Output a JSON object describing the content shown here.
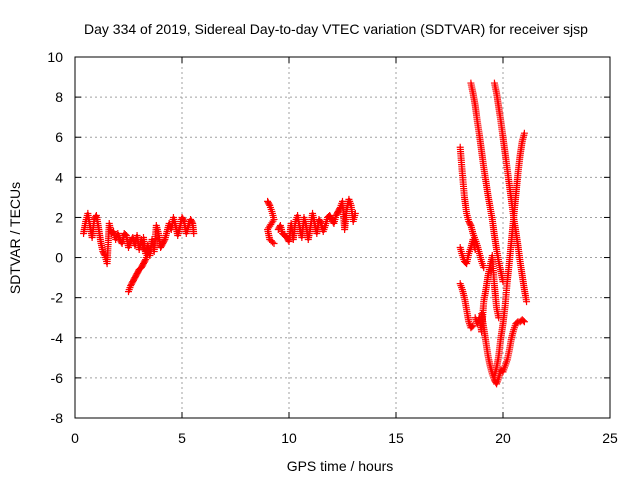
{
  "chart_data": {
    "type": "scatter",
    "title": "Day 334 of 2019, Sidereal Day-to-day VTEC variation (SDTVAR) for receiver sjsp",
    "xlabel": "GPS time / hours",
    "ylabel": "SDTVAR / TECUs",
    "xlim": [
      0,
      25
    ],
    "ylim": [
      -8,
      10
    ],
    "xticks": [
      "0",
      "5",
      "10",
      "15",
      "20",
      "25"
    ],
    "yticks": [
      "-8",
      "-6",
      "-4",
      "-2",
      "0",
      "2",
      "4",
      "6",
      "8",
      "10"
    ],
    "grid": true,
    "marker": "+",
    "series_color": "#ff0000",
    "segments": [
      {
        "name": "s1",
        "points": [
          [
            0.4,
            1.2
          ],
          [
            0.5,
            1.8
          ],
          [
            0.6,
            2.2
          ],
          [
            0.7,
            1.6
          ],
          [
            0.8,
            1.0
          ],
          [
            0.9,
            1.9
          ],
          [
            1.0,
            2.1
          ],
          [
            1.1,
            1.5
          ],
          [
            1.2,
            0.8
          ],
          [
            1.3,
            0.3
          ],
          [
            1.4,
            0.1
          ],
          [
            1.5,
            -0.3
          ],
          [
            1.6,
            1.7
          ],
          [
            1.7,
            1.2
          ],
          [
            1.8,
            1.3
          ],
          [
            1.9,
            0.9
          ],
          [
            2.0,
            1.2
          ],
          [
            2.1,
            0.9
          ],
          [
            2.2,
            0.7
          ],
          [
            2.3,
            1.2
          ],
          [
            2.4,
            1.1
          ],
          [
            2.5,
            0.5
          ],
          [
            2.6,
            0.8
          ],
          [
            2.7,
            1.0
          ],
          [
            2.8,
            0.6
          ],
          [
            2.9,
            1.1
          ],
          [
            3.0,
            0.4
          ],
          [
            3.1,
            0.9
          ],
          [
            3.2,
            0.5
          ],
          [
            3.3,
            0.3
          ]
        ]
      },
      {
        "name": "s2",
        "points": [
          [
            2.5,
            -1.7
          ],
          [
            2.6,
            -1.4
          ],
          [
            2.7,
            -1.2
          ],
          [
            2.8,
            -1.0
          ],
          [
            2.9,
            -0.8
          ],
          [
            3.0,
            -0.6
          ],
          [
            3.1,
            -0.5
          ],
          [
            3.2,
            -0.3
          ],
          [
            3.3,
            -0.1
          ],
          [
            3.4,
            0.2
          ],
          [
            3.5,
            0.4
          ]
        ]
      },
      {
        "name": "s3",
        "points": [
          [
            3.2,
            1.0
          ],
          [
            3.3,
            0.2
          ],
          [
            3.4,
            0.6
          ],
          [
            3.5,
            0.1
          ],
          [
            3.6,
            0.9
          ],
          [
            3.7,
            0.3
          ],
          [
            3.8,
            1.6
          ],
          [
            3.9,
            1.2
          ],
          [
            4.0,
            0.5
          ],
          [
            4.1,
            0.7
          ],
          [
            4.2,
            0.9
          ],
          [
            4.3,
            1.3
          ],
          [
            4.4,
            1.7
          ],
          [
            4.5,
            1.4
          ],
          [
            4.6,
            2.0
          ],
          [
            4.7,
            1.6
          ],
          [
            4.8,
            1.1
          ],
          [
            4.9,
            1.5
          ],
          [
            5.0,
            2.0
          ],
          [
            5.1,
            1.8
          ],
          [
            5.2,
            1.2
          ],
          [
            5.3,
            1.6
          ],
          [
            5.4,
            1.9
          ],
          [
            5.5,
            1.7
          ],
          [
            5.55,
            1.2
          ]
        ]
      },
      {
        "name": "s4",
        "points": [
          [
            9.0,
            2.8
          ],
          [
            9.1,
            2.6
          ],
          [
            9.2,
            2.3
          ],
          [
            9.3,
            1.9
          ],
          [
            9.0,
            1.4
          ],
          [
            9.1,
            0.9
          ],
          [
            9.3,
            0.7
          ]
        ]
      },
      {
        "name": "s5",
        "points": [
          [
            9.5,
            1.4
          ],
          [
            9.6,
            1.6
          ],
          [
            9.7,
            1.2
          ],
          [
            9.8,
            1.1
          ],
          [
            9.9,
            1.0
          ],
          [
            10.0,
            0.8
          ],
          [
            10.1,
            1.7
          ],
          [
            10.2,
            0.9
          ],
          [
            10.3,
            1.8
          ],
          [
            10.4,
            2.1
          ],
          [
            10.5,
            1.5
          ],
          [
            10.6,
            1.0
          ],
          [
            10.7,
            2.0
          ],
          [
            10.8,
            1.6
          ],
          [
            10.9,
            0.9
          ],
          [
            11.0,
            1.5
          ],
          [
            11.1,
            2.2
          ],
          [
            11.2,
            1.7
          ],
          [
            11.3,
            1.2
          ],
          [
            11.4,
            1.9
          ],
          [
            11.5,
            1.7
          ],
          [
            11.6,
            1.3
          ],
          [
            11.7,
            1.6
          ],
          [
            11.8,
            2.0
          ],
          [
            11.9,
            2.1
          ],
          [
            12.0,
            1.9
          ],
          [
            12.1,
            1.7
          ],
          [
            12.2,
            2.1
          ],
          [
            12.3,
            2.3
          ],
          [
            12.4,
            2.5
          ],
          [
            12.5,
            2.8
          ],
          [
            12.6,
            1.4
          ],
          [
            12.7,
            2.4
          ],
          [
            12.8,
            2.9
          ],
          [
            12.9,
            2.6
          ],
          [
            13.0,
            1.8
          ],
          [
            13.1,
            2.2
          ]
        ]
      },
      {
        "name": "s6",
        "points": [
          [
            18.0,
            5.5
          ],
          [
            18.1,
            4.2
          ],
          [
            18.2,
            3.0
          ],
          [
            18.3,
            2.2
          ],
          [
            18.4,
            1.8
          ],
          [
            18.5,
            1.6
          ],
          [
            18.6,
            1.2
          ],
          [
            18.7,
            0.9
          ],
          [
            18.8,
            0.6
          ],
          [
            18.9,
            0.2
          ],
          [
            19.0,
            -0.2
          ],
          [
            19.1,
            -0.5
          ]
        ]
      },
      {
        "name": "s7",
        "points": [
          [
            18.0,
            0.5
          ],
          [
            18.1,
            0.1
          ],
          [
            18.2,
            -0.2
          ],
          [
            18.3,
            -0.3
          ],
          [
            18.4,
            0.2
          ],
          [
            18.5,
            0.5
          ],
          [
            18.6,
            0.9
          ],
          [
            18.7,
            0.4
          ]
        ]
      },
      {
        "name": "s8",
        "points": [
          [
            18.0,
            -1.3
          ],
          [
            18.1,
            -1.6
          ],
          [
            18.2,
            -2.0
          ],
          [
            18.3,
            -2.6
          ],
          [
            18.4,
            -3.2
          ],
          [
            18.5,
            -3.5
          ],
          [
            18.6,
            -3.4
          ]
        ]
      },
      {
        "name": "s9",
        "points": [
          [
            18.5,
            8.7
          ],
          [
            18.6,
            8.2
          ],
          [
            18.7,
            7.6
          ],
          [
            18.8,
            6.8
          ],
          [
            18.9,
            6.1
          ],
          [
            19.0,
            5.3
          ],
          [
            19.1,
            4.5
          ],
          [
            19.2,
            3.8
          ],
          [
            19.3,
            3.1
          ],
          [
            19.4,
            2.5
          ],
          [
            19.5,
            1.9
          ],
          [
            19.6,
            1.1
          ],
          [
            19.7,
            0.4
          ],
          [
            19.8,
            -0.2
          ],
          [
            19.9,
            -0.7
          ],
          [
            20.0,
            -1.2
          ]
        ]
      },
      {
        "name": "s10",
        "points": [
          [
            19.6,
            8.7
          ],
          [
            19.7,
            8.2
          ],
          [
            19.8,
            7.5
          ],
          [
            19.9,
            6.8
          ],
          [
            20.0,
            6.0
          ],
          [
            20.1,
            5.2
          ],
          [
            20.2,
            4.4
          ],
          [
            20.3,
            3.6
          ],
          [
            20.4,
            2.8
          ],
          [
            20.5,
            2.0
          ],
          [
            20.6,
            1.3
          ],
          [
            20.7,
            0.6
          ],
          [
            20.8,
            -0.2
          ],
          [
            20.9,
            -0.9
          ],
          [
            21.0,
            -1.6
          ],
          [
            21.1,
            -2.2
          ]
        ]
      },
      {
        "name": "s11",
        "points": [
          [
            21.0,
            6.2
          ],
          [
            20.9,
            5.8
          ],
          [
            20.8,
            5.1
          ],
          [
            20.7,
            4.2
          ],
          [
            20.6,
            3.1
          ],
          [
            20.5,
            2.0
          ],
          [
            20.4,
            0.9
          ],
          [
            20.3,
            -0.2
          ],
          [
            20.2,
            -1.2
          ],
          [
            20.1,
            -2.4
          ],
          [
            20.0,
            -3.3
          ],
          [
            19.9,
            -4.0
          ],
          [
            19.8,
            -4.9
          ],
          [
            19.7,
            -5.5
          ],
          [
            19.6,
            -5.9
          ]
        ]
      },
      {
        "name": "s12",
        "points": [
          [
            19.0,
            -2.8
          ],
          [
            19.1,
            -3.5
          ],
          [
            19.2,
            -4.2
          ],
          [
            19.3,
            -4.9
          ],
          [
            19.4,
            -5.4
          ],
          [
            19.5,
            -5.8
          ],
          [
            19.6,
            -6.1
          ],
          [
            19.7,
            -6.3
          ],
          [
            19.8,
            -6.0
          ],
          [
            19.9,
            -5.6
          ],
          [
            20.0,
            -5.7
          ],
          [
            20.1,
            -5.4
          ],
          [
            20.2,
            -5.1
          ],
          [
            20.3,
            -4.6
          ],
          [
            20.4,
            -4.0
          ],
          [
            20.5,
            -3.6
          ],
          [
            20.6,
            -3.3
          ],
          [
            20.7,
            -3.2
          ],
          [
            20.8,
            -3.2
          ],
          [
            20.9,
            -3.1
          ],
          [
            21.0,
            -3.2
          ]
        ]
      },
      {
        "name": "s13",
        "points": [
          [
            18.7,
            -3.0
          ],
          [
            18.8,
            -3.3
          ],
          [
            18.9,
            -3.0
          ],
          [
            19.0,
            -3.7
          ],
          [
            19.1,
            -2.2
          ],
          [
            19.2,
            -1.6
          ],
          [
            19.3,
            -0.9
          ],
          [
            19.4,
            -0.4
          ],
          [
            19.5,
            0.1
          ],
          [
            19.6,
            -1.4
          ],
          [
            19.7,
            -2.5
          ],
          [
            19.8,
            -3.0
          ]
        ]
      }
    ]
  }
}
